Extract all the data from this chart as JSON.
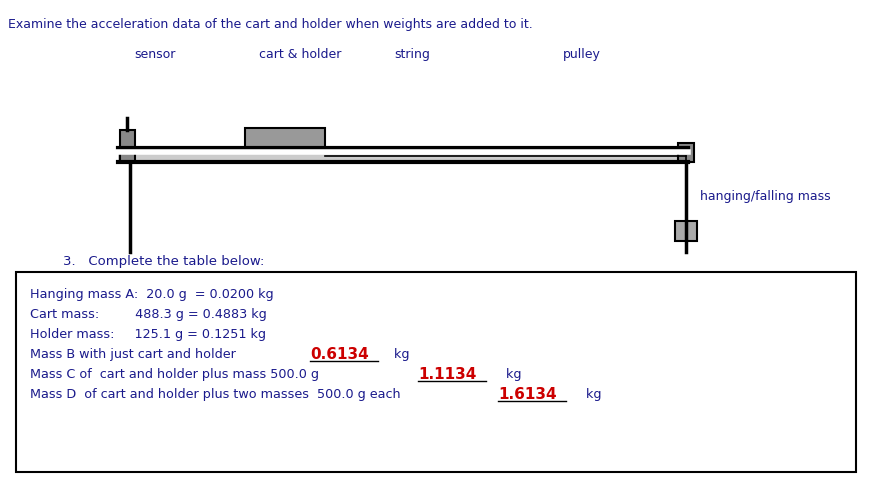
{
  "title": "Examine the acceleration data of the cart and holder when weights are added to it.",
  "label_sensor": "sensor",
  "label_cart": "cart & holder",
  "label_string": "string",
  "label_pulley": "pulley",
  "label_hanging": "hanging/falling mass",
  "instruction": "3.   Complete the table below:",
  "line1": "Hanging mass A:  20.0 g  = 0.0200 kg",
  "line2_pre": "Cart mass:         488.3 g = 0.4883 kg",
  "line3_pre": "Holder mass:     125.1 g = 0.1251 kg",
  "line4_pre": "Mass B with just cart and holder ",
  "line4_handwritten": "0.6134",
  "line4_post": "   kg",
  "line5_pre": "Mass C of  cart and holder plus mass 500.0 g ",
  "line5_handwritten": "1.1134",
  "line5_post": "    kg",
  "line6_pre": "Mass D  of cart and holder plus two masses  500.0 g each",
  "line6_handwritten": "1.6134",
  "line6_post": "    kg",
  "bg_color": "#ffffff",
  "text_color": "#1a1a8c",
  "handwritten_color": "#cc0000",
  "title_color": "#1a1a8c"
}
